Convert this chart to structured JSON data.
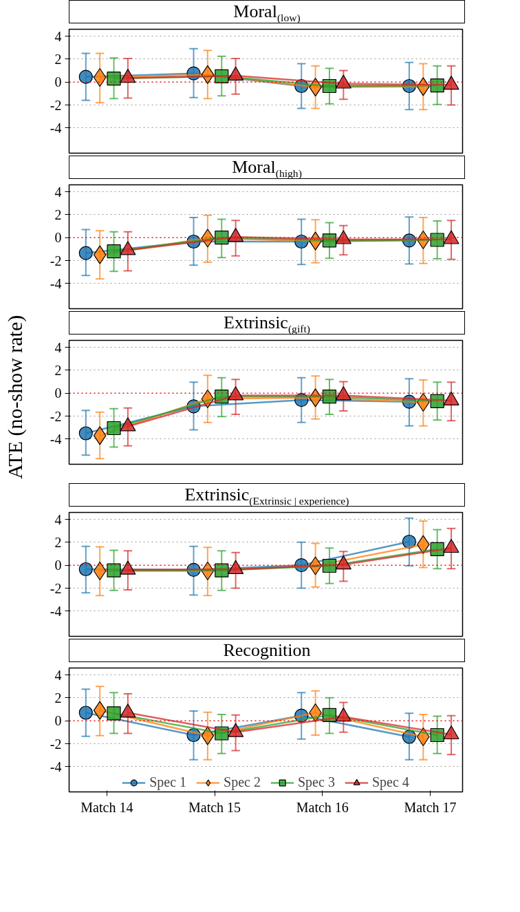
{
  "chart_data": [
    {
      "type": "line",
      "title": "Moral$_{(low)}$",
      "categories": [
        null,
        null,
        null,
        null
      ],
      "ylim": [
        -6.2,
        4.6
      ],
      "yticks": [
        -4,
        -2,
        0,
        2,
        4
      ],
      "grid": "y",
      "tick_labels": "y",
      "ref_lines": [
        {
          "axis": "y",
          "value": 0,
          "color": "#ff0000",
          "line_style": "dotted"
        }
      ],
      "series": [
        {
          "color": "#1f77b4",
          "marker": "circle",
          "values": [
            0.45,
            0.75,
            -0.35,
            -0.35
          ],
          "errors": [
            [
              -1.6,
              2.5
            ],
            [
              -1.35,
              2.9
            ],
            [
              -2.3,
              1.6
            ],
            [
              -2.4,
              1.7
            ]
          ]
        },
        {
          "color": "#ff7f0e",
          "marker": "diamond",
          "values": [
            0.4,
            0.65,
            -0.45,
            -0.4
          ],
          "errors": [
            [
              -1.8,
              2.5
            ],
            [
              -1.45,
              2.75
            ],
            [
              -2.3,
              1.4
            ],
            [
              -2.4,
              1.6
            ]
          ]
        },
        {
          "color": "#2ca02c",
          "marker": "square",
          "values": [
            0.3,
            0.5,
            -0.35,
            -0.3
          ],
          "errors": [
            [
              -1.45,
              2.1
            ],
            [
              -1.2,
              2.25
            ],
            [
              -1.9,
              1.2
            ],
            [
              -1.95,
              1.4
            ]
          ]
        },
        {
          "color": "#d62728",
          "marker": "triangle",
          "values": [
            0.35,
            0.55,
            -0.15,
            -0.25
          ],
          "errors": [
            [
              -1.4,
              2.05
            ],
            [
              -1.05,
              2.05
            ],
            [
              -1.5,
              1.0
            ],
            [
              -2.0,
              1.4
            ]
          ]
        }
      ]
    },
    {
      "type": "line",
      "title": "Moral$_{(high)}$",
      "categories": [
        null,
        null,
        null,
        null
      ],
      "ylim": [
        -6.2,
        4.6
      ],
      "yticks": [
        -4,
        -2,
        0,
        2,
        4
      ],
      "grid": "y",
      "tick_labels": "y",
      "ref_lines": [
        {
          "axis": "y",
          "value": 0,
          "color": "#ff0000",
          "line_style": "dotted"
        }
      ],
      "series": [
        {
          "color": "#1f77b4",
          "marker": "circle",
          "values": [
            -1.35,
            -0.35,
            -0.35,
            -0.25
          ],
          "errors": [
            [
              -3.3,
              0.7
            ],
            [
              -2.4,
              1.75
            ],
            [
              -2.35,
              1.6
            ],
            [
              -2.3,
              1.8
            ]
          ]
        },
        {
          "color": "#ff7f0e",
          "marker": "diamond",
          "values": [
            -1.5,
            -0.05,
            -0.3,
            -0.2
          ],
          "errors": [
            [
              -3.6,
              0.6
            ],
            [
              -2.15,
              1.95
            ],
            [
              -2.2,
              1.55
            ],
            [
              -2.25,
              1.75
            ]
          ]
        },
        {
          "color": "#2ca02c",
          "marker": "square",
          "values": [
            -1.2,
            0.0,
            -0.25,
            -0.2
          ],
          "errors": [
            [
              -2.95,
              0.5
            ],
            [
              -1.75,
              1.6
            ],
            [
              -1.8,
              1.3
            ],
            [
              -1.85,
              1.45
            ]
          ]
        },
        {
          "color": "#d62728",
          "marker": "triangle",
          "values": [
            -1.1,
            0.05,
            -0.15,
            -0.15
          ],
          "errors": [
            [
              -2.9,
              0.5
            ],
            [
              -1.6,
              1.5
            ],
            [
              -1.5,
              1.05
            ],
            [
              -1.9,
              1.5
            ]
          ]
        }
      ]
    },
    {
      "type": "line",
      "title": "Extrinsic$_{(gift)}$",
      "ylabel": "ATE (no-show rate)",
      "categories": [
        null,
        null,
        null,
        null
      ],
      "ylim": [
        -6.2,
        4.6
      ],
      "yticks": [
        -4,
        -2,
        0,
        2,
        4
      ],
      "grid": "y",
      "tick_labels": "y",
      "ref_lines": [
        {
          "axis": "y",
          "value": 0,
          "color": "#ff0000",
          "line_style": "dotted"
        }
      ],
      "series": [
        {
          "color": "#1f77b4",
          "marker": "circle",
          "values": [
            -3.5,
            -1.15,
            -0.6,
            -0.75
          ],
          "errors": [
            [
              -5.4,
              -1.5
            ],
            [
              -3.2,
              0.95
            ],
            [
              -2.55,
              1.35
            ],
            [
              -2.85,
              1.25
            ]
          ]
        },
        {
          "color": "#ff7f0e",
          "marker": "diamond",
          "values": [
            -3.7,
            -0.5,
            -0.4,
            -0.8
          ],
          "errors": [
            [
              -5.7,
              -1.65
            ],
            [
              -2.55,
              1.55
            ],
            [
              -2.25,
              1.5
            ],
            [
              -2.85,
              1.15
            ]
          ]
        },
        {
          "color": "#2ca02c",
          "marker": "square",
          "values": [
            -3.05,
            -0.3,
            -0.3,
            -0.7
          ],
          "errors": [
            [
              -4.7,
              -1.35
            ],
            [
              -2.05,
              1.35
            ],
            [
              -1.85,
              1.2
            ],
            [
              -2.35,
              0.95
            ]
          ]
        },
        {
          "color": "#d62728",
          "marker": "triangle",
          "values": [
            -2.9,
            -0.2,
            -0.2,
            -0.65
          ],
          "errors": [
            [
              -4.6,
              -1.3
            ],
            [
              -1.85,
              1.2
            ],
            [
              -1.55,
              1.0
            ],
            [
              -2.4,
              0.95
            ]
          ]
        }
      ]
    },
    {
      "type": "line",
      "title": "Extrinsic$_{(Extrinsic | experience)}$",
      "categories": [
        null,
        null,
        null,
        null
      ],
      "ylim": [
        -6.2,
        4.6
      ],
      "yticks": [
        -4,
        -2,
        0,
        2,
        4
      ],
      "grid": "y",
      "tick_labels": "y",
      "ref_lines": [
        {
          "axis": "y",
          "value": 0,
          "color": "#ff0000",
          "line_style": "dotted"
        }
      ],
      "series": [
        {
          "color": "#1f77b4",
          "marker": "circle",
          "values": [
            -0.35,
            -0.4,
            0.0,
            2.05
          ],
          "errors": [
            [
              -2.4,
              1.65
            ],
            [
              -2.6,
              1.65
            ],
            [
              -2.0,
              2.0
            ],
            [
              -0.05,
              4.1
            ]
          ]
        },
        {
          "color": "#ff7f0e",
          "marker": "diamond",
          "values": [
            -0.5,
            -0.5,
            -0.05,
            1.8
          ],
          "errors": [
            [
              -2.65,
              1.6
            ],
            [
              -2.65,
              1.55
            ],
            [
              -1.9,
              1.9
            ],
            [
              -0.2,
              3.85
            ]
          ]
        },
        {
          "color": "#2ca02c",
          "marker": "square",
          "values": [
            -0.45,
            -0.45,
            -0.05,
            1.4
          ],
          "errors": [
            [
              -2.2,
              1.3
            ],
            [
              -2.2,
              1.25
            ],
            [
              -1.6,
              1.5
            ],
            [
              -0.3,
              3.1
            ]
          ]
        },
        {
          "color": "#d62728",
          "marker": "triangle",
          "values": [
            -0.4,
            -0.35,
            0.05,
            1.5
          ],
          "errors": [
            [
              -2.15,
              1.25
            ],
            [
              -2.0,
              1.1
            ],
            [
              -1.4,
              1.2
            ],
            [
              -0.3,
              3.2
            ]
          ]
        }
      ]
    },
    {
      "type": "line",
      "title": "Recognition",
      "categories": [
        "Match 14",
        "Match 15",
        "Match 16",
        "Match 17"
      ],
      "ylim": [
        -6.2,
        4.6
      ],
      "yticks": [
        -4,
        -2,
        0,
        2,
        4
      ],
      "grid": "y",
      "legend": "bottom",
      "ref_lines": [
        {
          "axis": "y",
          "value": 0,
          "color": "#ff0000",
          "line_style": "dotted"
        }
      ],
      "series": [
        {
          "name": "Spec 1",
          "color": "#1f77b4",
          "marker": "circle",
          "values": [
            0.7,
            -1.25,
            0.45,
            -1.4
          ],
          "errors": [
            [
              -1.35,
              2.75
            ],
            [
              -3.4,
              0.85
            ],
            [
              -1.6,
              2.45
            ],
            [
              -3.4,
              0.65
            ]
          ]
        },
        {
          "name": "Spec 2",
          "color": "#ff7f0e",
          "marker": "diamond",
          "values": [
            0.9,
            -1.3,
            0.7,
            -1.4
          ],
          "errors": [
            [
              -1.3,
              3.0
            ],
            [
              -3.4,
              0.75
            ],
            [
              -1.25,
              2.6
            ],
            [
              -3.4,
              0.55
            ]
          ]
        },
        {
          "name": "Spec 3",
          "color": "#2ca02c",
          "marker": "square",
          "values": [
            0.65,
            -1.1,
            0.5,
            -1.25
          ],
          "errors": [
            [
              -1.1,
              2.45
            ],
            [
              -2.85,
              0.55
            ],
            [
              -1.1,
              2.0
            ],
            [
              -2.85,
              0.4
            ]
          ]
        },
        {
          "name": "Spec 4",
          "color": "#d62728",
          "marker": "triangle",
          "values": [
            0.7,
            -1.0,
            0.35,
            -1.2
          ],
          "errors": [
            [
              -1.1,
              2.35
            ],
            [
              -2.6,
              0.5
            ],
            [
              -1.0,
              1.6
            ],
            [
              -2.95,
              0.45
            ]
          ]
        }
      ]
    }
  ]
}
